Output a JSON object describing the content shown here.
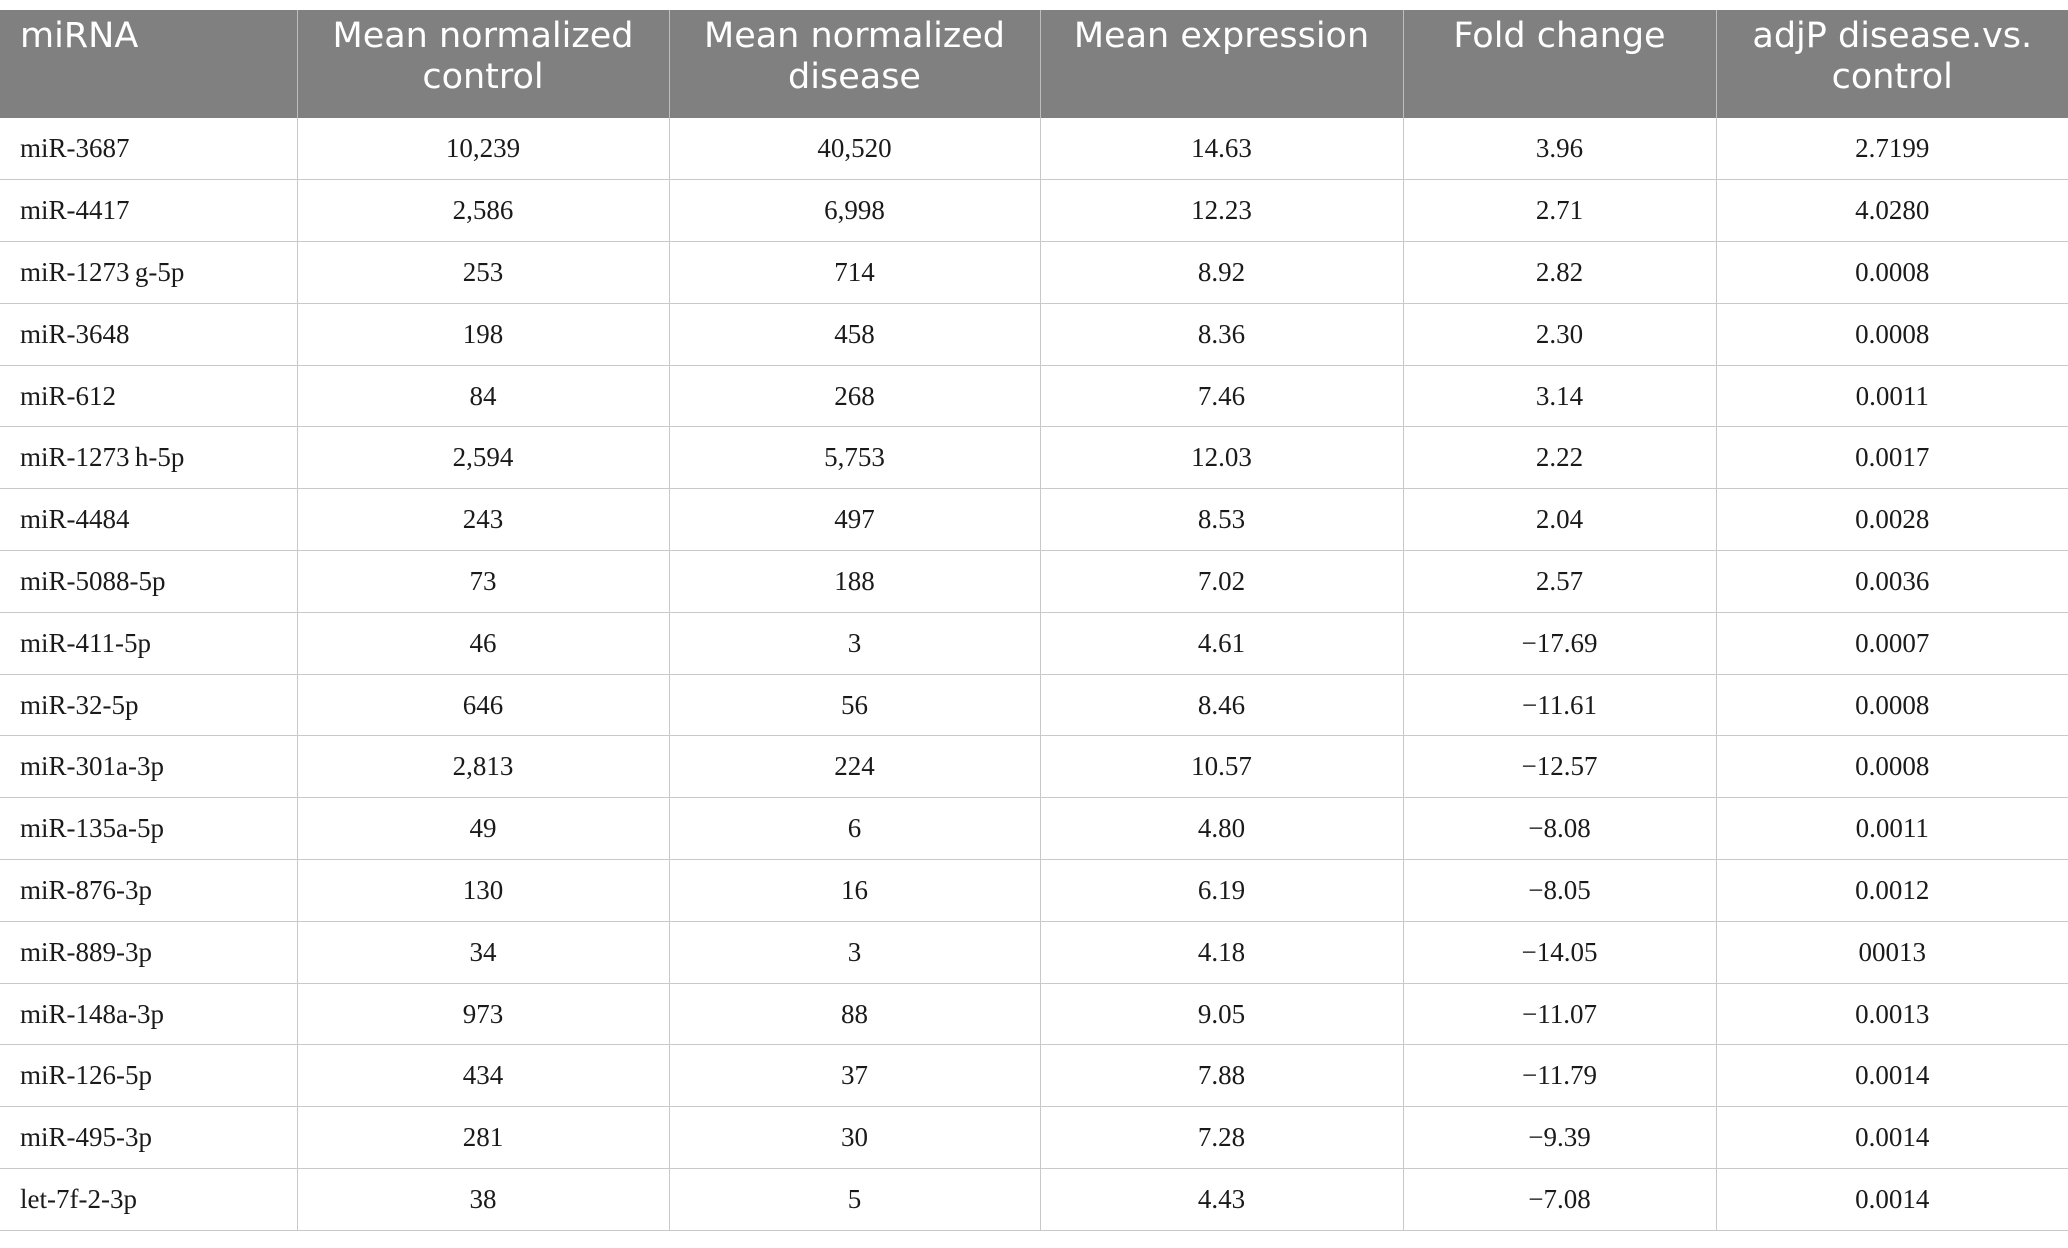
{
  "table": {
    "headers": [
      "miRNA",
      "Mean normalized control",
      "Mean normalized disease",
      "Mean expression",
      "Fold change",
      "adjP disease.vs. control"
    ],
    "rows": [
      [
        "miR-3687",
        "10,239",
        "40,520",
        "14.63",
        "3.96",
        "2.7199"
      ],
      [
        "miR-4417",
        "2,586",
        "6,998",
        "12.23",
        "2.71",
        "4.0280"
      ],
      [
        "miR-1273 g-5p",
        "253",
        "714",
        "8.92",
        "2.82",
        "0.0008"
      ],
      [
        "miR-3648",
        "198",
        "458",
        "8.36",
        "2.30",
        "0.0008"
      ],
      [
        "miR-612",
        "84",
        "268",
        "7.46",
        "3.14",
        "0.0011"
      ],
      [
        "miR-1273 h-5p",
        "2,594",
        "5,753",
        "12.03",
        "2.22",
        "0.0017"
      ],
      [
        "miR-4484",
        "243",
        "497",
        "8.53",
        "2.04",
        "0.0028"
      ],
      [
        "miR-5088-5p",
        "73",
        "188",
        "7.02",
        "2.57",
        "0.0036"
      ],
      [
        "miR-411-5p",
        "46",
        "3",
        "4.61",
        "−17.69",
        "0.0007"
      ],
      [
        "miR-32-5p",
        "646",
        "56",
        "8.46",
        "−11.61",
        "0.0008"
      ],
      [
        "miR-301a-3p",
        "2,813",
        "224",
        "10.57",
        "−12.57",
        "0.0008"
      ],
      [
        "miR-135a-5p",
        "49",
        "6",
        "4.80",
        "−8.08",
        "0.0011"
      ],
      [
        "miR-876-3p",
        "130",
        "16",
        "6.19",
        "−8.05",
        "0.0012"
      ],
      [
        "miR-889-3p",
        "34",
        "3",
        "4.18",
        "−14.05",
        "00013"
      ],
      [
        "miR-148a-3p",
        "973",
        "88",
        "9.05",
        "−11.07",
        "0.0013"
      ],
      [
        "miR-126-5p",
        "434",
        "37",
        "7.88",
        "−11.79",
        "0.0014"
      ],
      [
        "miR-495-3p",
        "281",
        "30",
        "7.28",
        "−9.39",
        "0.0014"
      ],
      [
        "let-7f-2-3p",
        "38",
        "5",
        "4.43",
        "−7.08",
        "0.0014"
      ]
    ]
  }
}
